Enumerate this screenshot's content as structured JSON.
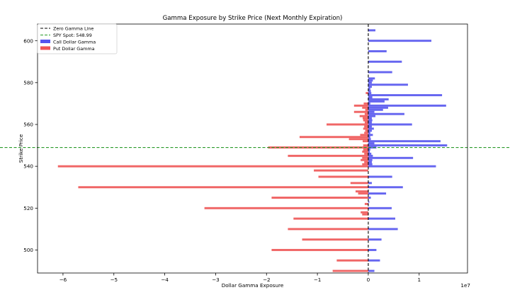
{
  "chart_data": {
    "type": "bar",
    "orientation": "horizontal",
    "title": "Gamma Exposure by Strike Price (Next Monthly Expiration)",
    "xlabel": "Dollar Gamma Exposure",
    "ylabel": "Strike Price",
    "x_scale_label": "1e7",
    "xlim": [
      -6.5,
      1.95
    ],
    "ylim": [
      489,
      608
    ],
    "x_ticks": [
      -6,
      -5,
      -4,
      -3,
      -2,
      -1,
      0,
      1
    ],
    "x_tick_labels": [
      "−6",
      "−5",
      "−4",
      "−3",
      "−2",
      "−1",
      "0",
      "1"
    ],
    "y_ticks": [
      500,
      520,
      540,
      560,
      580,
      600
    ],
    "y_tick_labels": [
      "500",
      "520",
      "540",
      "560",
      "580",
      "600"
    ],
    "grid": false,
    "legend_position": "top-left",
    "colors": {
      "call": "#5555ee",
      "put": "#ee5555",
      "zero_line": "#000000",
      "spot_line": "#2a9a2a"
    },
    "legend": [
      {
        "label": "Zero Gamma Line",
        "kind": "line",
        "style": "dashed",
        "color": "#000000"
      },
      {
        "label": "SPY Spot: 548.99",
        "kind": "line",
        "style": "dashed",
        "color": "#2a9a2a"
      },
      {
        "label": "Call Dollar Gamma",
        "kind": "patch",
        "color": "#5555ee"
      },
      {
        "label": "Put Dollar Gamma",
        "kind": "patch",
        "color": "#ee5555"
      }
    ],
    "zero_line_x": 0,
    "spot": 548.99,
    "bar_height": 1,
    "series": [
      {
        "name": "Call Dollar Gamma",
        "strike": [
          490,
          495,
          500,
          505,
          510,
          515,
          520,
          523,
          525,
          527,
          530,
          532,
          535,
          540,
          541,
          542,
          543,
          544,
          545,
          546,
          547,
          548,
          549,
          550,
          551,
          552,
          553,
          554,
          555,
          556,
          557,
          558,
          559,
          560,
          561,
          562,
          563,
          564,
          565,
          566,
          567,
          568,
          569,
          570,
          571,
          572,
          573,
          574,
          575,
          576,
          577,
          578,
          579,
          580,
          581,
          582,
          585,
          590,
          595,
          600,
          605
        ],
        "values": [
          0.12,
          0.23,
          0.16,
          0.26,
          0.58,
          0.53,
          0.46,
          0.02,
          0.05,
          0.35,
          0.68,
          0.07,
          0.47,
          1.33,
          0.08,
          0.07,
          0.08,
          0.88,
          0.09,
          0.06,
          0.03,
          0.04,
          0.16,
          1.55,
          0.12,
          1.42,
          0.05,
          0.04,
          0.09,
          0.04,
          0.07,
          0.11,
          0.07,
          0.86,
          0.07,
          0.08,
          0.07,
          0.14,
          0.71,
          0.12,
          0.29,
          0.39,
          1.53,
          0.04,
          0.32,
          0.4,
          0.08,
          1.45,
          0.06,
          0.05,
          0.04,
          0.07,
          0.78,
          0.07,
          0.09,
          0.13,
          0.47,
          0.66,
          0.36,
          1.24,
          0.14
        ]
      },
      {
        "name": "Put Dollar Gamma",
        "strike": [
          490,
          495,
          500,
          505,
          510,
          515,
          517,
          518,
          520,
          522,
          525,
          527,
          528,
          530,
          532,
          535,
          538,
          540,
          541,
          542,
          543,
          544,
          545,
          546,
          547,
          548,
          549,
          550,
          552,
          553,
          554,
          555,
          556,
          557,
          558,
          559,
          560,
          561,
          562,
          563,
          564,
          565,
          566,
          567,
          568,
          569,
          570,
          575
        ],
        "values": [
          -0.7,
          -0.62,
          -1.9,
          -1.3,
          -1.58,
          -1.47,
          -0.12,
          -0.15,
          -3.22,
          -0.07,
          -1.9,
          -0.2,
          -0.25,
          -5.7,
          -0.35,
          -0.98,
          -1.07,
          -6.1,
          -0.12,
          -0.08,
          -0.15,
          -0.12,
          -1.58,
          -0.08,
          -0.12,
          -0.1,
          -1.97,
          -0.1,
          -0.11,
          -0.38,
          -1.35,
          -0.16,
          -0.08,
          -0.06,
          -0.1,
          -0.08,
          -0.82,
          -0.07,
          -0.1,
          -0.11,
          -0.17,
          -0.07,
          -0.28,
          -0.06,
          -0.12,
          -0.28,
          -0.09,
          -0.05
        ]
      }
    ]
  }
}
